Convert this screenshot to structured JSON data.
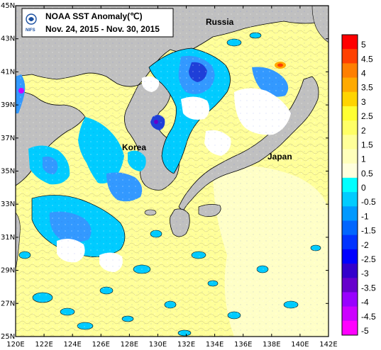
{
  "title": {
    "line1": "NOAA SST Anomaly(℃)",
    "line2": "Nov. 24, 2015 - Nov. 30, 2015",
    "logo_text": "NIFS"
  },
  "places": [
    {
      "name": "Russia"
    },
    {
      "name": "Korea"
    },
    {
      "name": "Japan"
    }
  ],
  "axes": {
    "lat_ticks": [
      "45N",
      "43N",
      "41N",
      "39N",
      "37N",
      "35N",
      "33N",
      "31N",
      "29N",
      "27N",
      "25N"
    ],
    "lon_ticks": [
      "120E",
      "122E",
      "124E",
      "126E",
      "128E",
      "130E",
      "132E",
      "134E",
      "136E",
      "138E",
      "140E",
      "142E"
    ]
  },
  "colorbar": {
    "labels": [
      "5",
      "4.5",
      "4",
      "3.5",
      "3",
      "2.5",
      "2",
      "1.5",
      "1",
      "0.5",
      "0",
      "-0.5",
      "-1",
      "-1.5",
      "-2",
      "-2.5",
      "-3",
      "-3.5",
      "-4",
      "-4.5",
      "-5"
    ],
    "colors": [
      "#ff0000",
      "#ff4000",
      "#ff7f00",
      "#ffaa00",
      "#ffd400",
      "#ffff33",
      "#ffff66",
      "#ffff99",
      "#ffffbb",
      "#ffffdd",
      "#00ffff",
      "#00ccff",
      "#0099ff",
      "#0066ff",
      "#0033ff",
      "#0000ff",
      "#3300cc",
      "#6600cc",
      "#9900ff",
      "#cc00ff",
      "#ff00ff"
    ]
  },
  "colors": {
    "sea_warm": "#ffff99",
    "sea_light": "#ffffcc",
    "land": "#c0c0c0",
    "cold_light": "#00ccff",
    "cold_mid": "#3399ff",
    "cold_deep": "#1f3fd8",
    "cloud": "#ffffff"
  }
}
